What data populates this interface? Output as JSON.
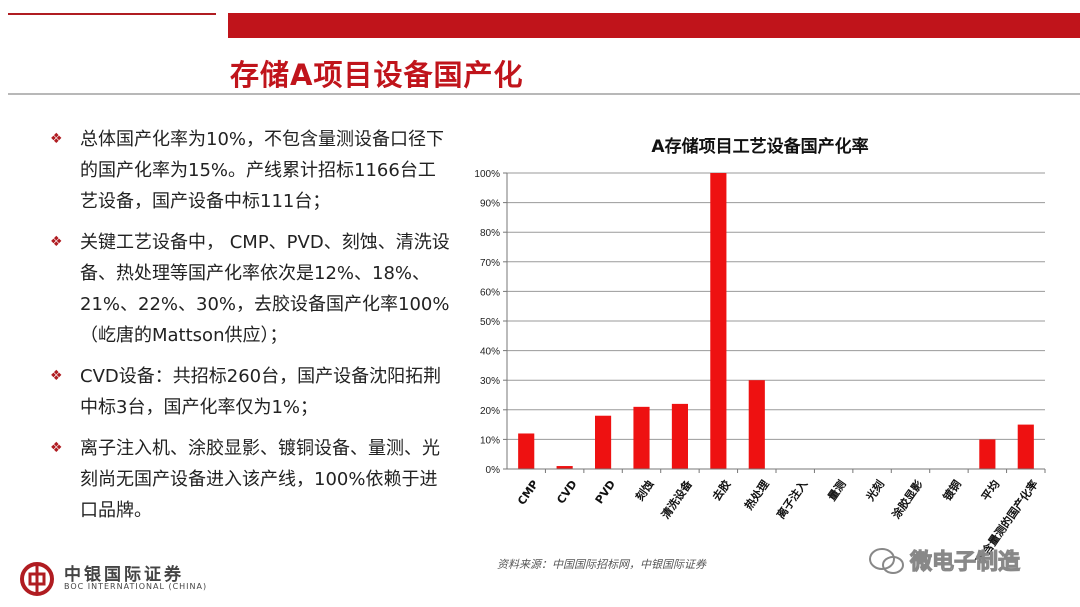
{
  "title": "存储A项目设备国产化",
  "bullets": [
    "总体国产化率为10%，不包含量测设备口径下的国产化率为15%。产线累计招标1166台工艺设备，国产设备中标111台；",
    "关键工艺设备中， CMP、PVD、刻蚀、清洗设备、热处理等国产化率依次是12%、18%、21%、22%、30%，去胶设备国产化率100%（屹唐的Mattson供应）；",
    "CVD设备：共招标260台，国产设备沈阳拓荆中标3台，国产化率仅为1%；",
    "离子注入机、涂胶显影、镀铜设备、量测、光刻尚无国产设备进入该产线，100%依赖于进口品牌。"
  ],
  "chart_data": {
    "type": "bar",
    "title": "A存储项目工艺设备国产化率",
    "categories": [
      "CMP",
      "CVD",
      "PVD",
      "刻蚀",
      "清洗设备",
      "去胶",
      "热处理",
      "离子注入",
      "量测",
      "光刻",
      "涂胶显影",
      "镀铜",
      "平均",
      "不含量测的国产化率"
    ],
    "values": [
      12,
      1,
      18,
      21,
      22,
      100,
      30,
      0,
      0,
      0,
      0,
      0,
      10,
      15
    ],
    "ylim": [
      0,
      100
    ],
    "yticks": [
      "0%",
      "10%",
      "20%",
      "30%",
      "40%",
      "50%",
      "60%",
      "70%",
      "80%",
      "90%",
      "100%"
    ],
    "grid": true,
    "bar_color": "#ee1111"
  },
  "source": "资料来源：中国国际招标网，中银国际证券",
  "logo": {
    "cn": "中银国际证券",
    "en": "BOC INTERNATIONAL (CHINA)"
  },
  "watermark": "微电子制造",
  "colors": {
    "accent": "#c0141b"
  }
}
